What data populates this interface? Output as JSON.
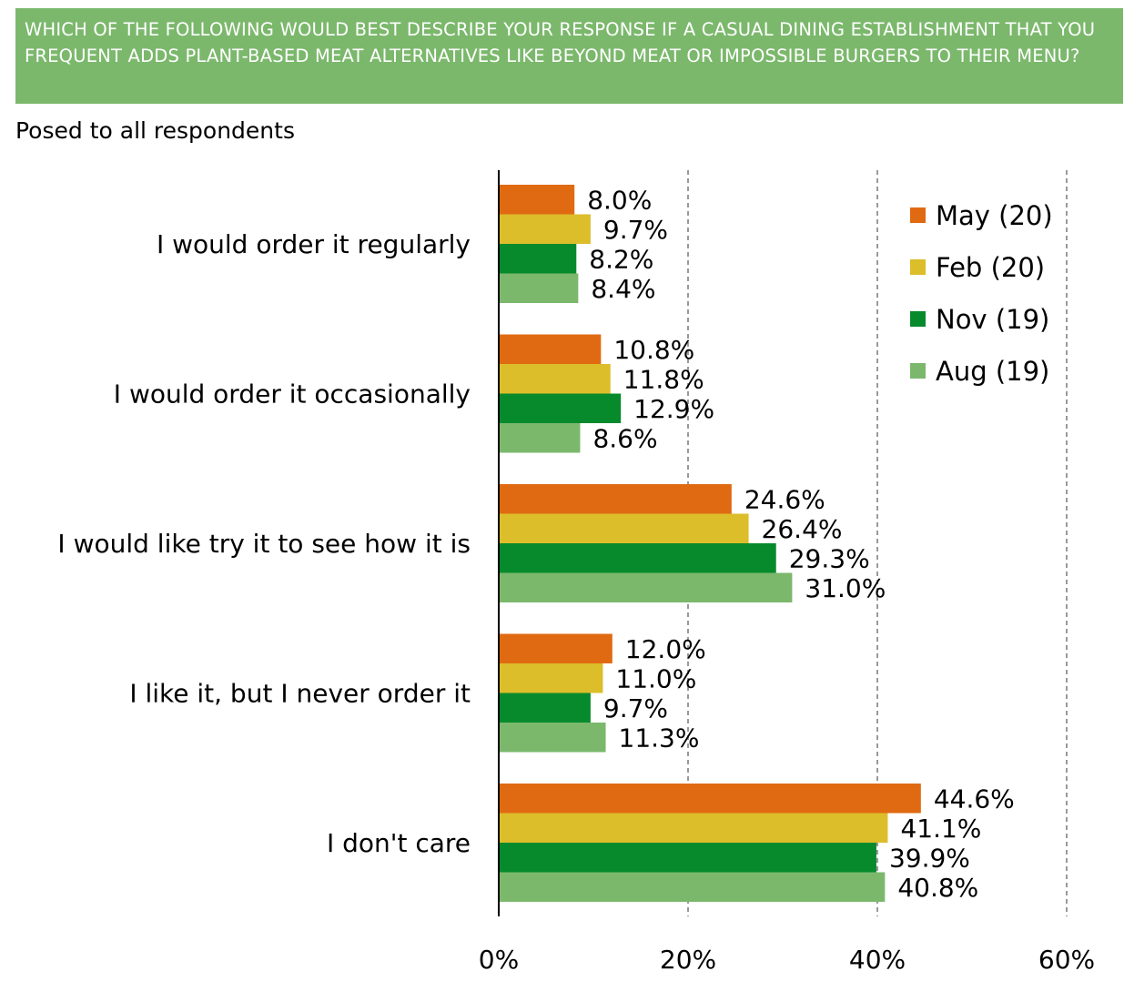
{
  "header": {
    "title": "WHICH OF THE FOLLOWING WOULD BEST DESCRIBE YOUR RESPONSE IF A CASUAL DINING ESTABLISHMENT THAT YOU FREQUENT ADDS PLANT-BASED MEAT ALTERNATIVES LIKE BEYOND MEAT OR IMPOSSIBLE BURGERS TO THEIR MENU?",
    "subtitle": "Posed to all respondents"
  },
  "colors": {
    "title_background": "#7bb86c",
    "title_text": "#ffffff",
    "grid": "#999999"
  },
  "chart_data": {
    "type": "bar",
    "orientation": "horizontal",
    "title": "",
    "xlabel": "",
    "ylabel": "",
    "categories": [
      "I would order it regularly",
      "I would order it occasionally",
      "I would like try it to see how it is",
      "I like it, but I never order it",
      "I don't care"
    ],
    "series": [
      {
        "name": "May (20)",
        "color": "#e06a12",
        "values": [
          8.0,
          10.8,
          24.6,
          12.0,
          44.6
        ],
        "labels": [
          "8.0%",
          "10.8%",
          "24.6%",
          "12.0%",
          "44.6%"
        ]
      },
      {
        "name": "Feb (20)",
        "color": "#dcbd2a",
        "values": [
          9.7,
          11.8,
          26.4,
          11.0,
          41.1
        ],
        "labels": [
          "9.7%",
          "11.8%",
          "26.4%",
          "11.0%",
          "41.1%"
        ]
      },
      {
        "name": "Nov (19)",
        "color": "#078a2c",
        "values": [
          8.2,
          12.9,
          29.3,
          9.7,
          39.9
        ],
        "labels": [
          "8.2%",
          "12.9%",
          "29.3%",
          "9.7%",
          "39.9%"
        ]
      },
      {
        "name": "Aug (19)",
        "color": "#7bb86c",
        "values": [
          8.4,
          8.6,
          31.0,
          11.3,
          40.8
        ],
        "labels": [
          "8.4%",
          "8.6%",
          "31.0%",
          "11.3%",
          "40.8%"
        ]
      }
    ],
    "xlim": [
      0,
      60
    ],
    "xticks": [
      0,
      20,
      40,
      60
    ],
    "xtick_labels": [
      "0%",
      "20%",
      "40%",
      "60%"
    ],
    "grid": "vertical dashed",
    "legend": "top-right"
  }
}
